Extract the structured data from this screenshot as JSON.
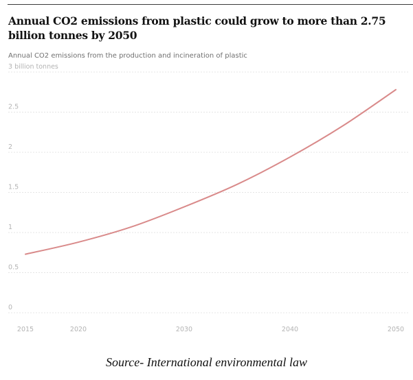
{
  "title": "Annual CO2 emissions from plastic could grow to more than 2.75 billion tonnes by 2050",
  "subtitle": "Annual CO2 emissions from the production and incineration of plastic",
  "source": "Source- International environmental law",
  "colors": {
    "line": "#d98a8a",
    "grid": "#e4e4e4",
    "rule": "#3a3a3a",
    "tick_text": "#b3b3b3"
  },
  "chart_data": {
    "type": "line",
    "title": "Annual CO2 emissions from plastic could grow to more than 2.75 billion tonnes by 2050",
    "subtitle": "Annual CO2 emissions from the production and incineration of plastic",
    "xlabel": "",
    "ylabel": "",
    "x": [
      2015,
      2020,
      2025,
      2030,
      2035,
      2040,
      2045,
      2050
    ],
    "series": [
      {
        "values": [
          0.73,
          0.88,
          1.07,
          1.32,
          1.6,
          1.94,
          2.33,
          2.78
        ]
      }
    ],
    "xlim": [
      2015,
      2050
    ],
    "ylim": [
      0,
      3
    ],
    "x_ticks": [
      {
        "value": 2015,
        "label": "2015"
      },
      {
        "value": 2020,
        "label": "2020"
      },
      {
        "value": 2030,
        "label": "2030"
      },
      {
        "value": 2040,
        "label": "2040"
      },
      {
        "value": 2050,
        "label": "2050"
      }
    ],
    "y_ticks": [
      {
        "value": 0,
        "label": "0"
      },
      {
        "value": 0.5,
        "label": "0.5"
      },
      {
        "value": 1,
        "label": "1"
      },
      {
        "value": 1.5,
        "label": "1.5"
      },
      {
        "value": 2,
        "label": "2"
      },
      {
        "value": 2.5,
        "label": "2.5"
      },
      {
        "value": 3,
        "label": "3 billion tonnes"
      }
    ],
    "grid": true,
    "legend": "none"
  }
}
